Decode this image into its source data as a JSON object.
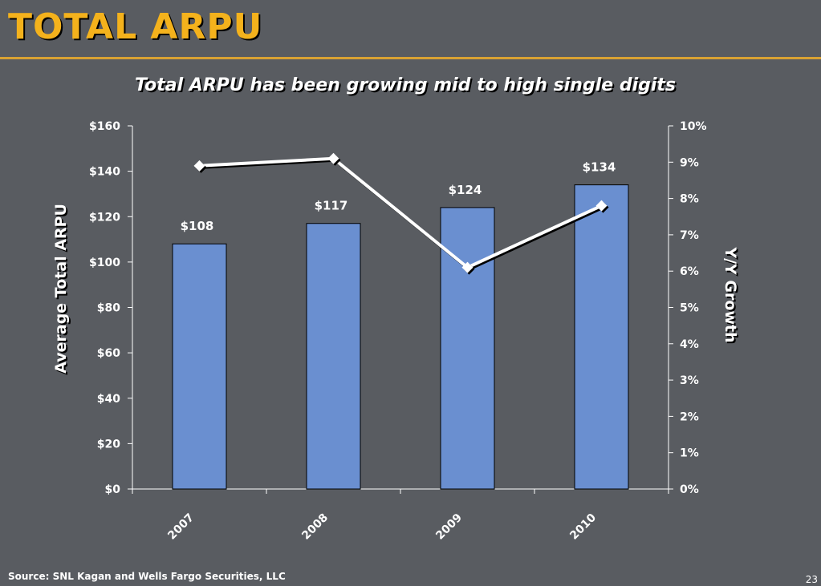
{
  "slide": {
    "title": "TOTAL ARPU",
    "source": "Source: SNL Kagan and Wells Fargo Securities, LLC",
    "page_number": "23"
  },
  "colors": {
    "background": "#595c61",
    "title": "#f4b21c",
    "bar": "#6a8fd0",
    "line": "#ffffff"
  },
  "chart_data": {
    "type": "bar",
    "title": "Total ARPU has been growing mid to high single digits",
    "categories": [
      "2007",
      "2008",
      "2009",
      "2010"
    ],
    "series": [
      {
        "type": "bar",
        "axis": "left",
        "values": [
          108,
          117,
          124,
          134
        ],
        "data_labels": [
          "$108",
          "$117",
          "$124",
          "$134"
        ]
      },
      {
        "type": "line",
        "axis": "right",
        "values": [
          8.9,
          9.1,
          6.1,
          7.8
        ]
      }
    ],
    "ylabel": "Average Total ARPU",
    "ylim": [
      0,
      160
    ],
    "yticks": [
      "$0",
      "$20",
      "$40",
      "$60",
      "$80",
      "$100",
      "$120",
      "$140",
      "$160"
    ],
    "y2label": "Y/Y Growth",
    "y2lim": [
      0,
      10
    ],
    "y2ticks": [
      "0%",
      "1%",
      "2%",
      "3%",
      "4%",
      "5%",
      "6%",
      "7%",
      "8%",
      "9%",
      "10%"
    ],
    "grid": false,
    "legend": "none"
  }
}
